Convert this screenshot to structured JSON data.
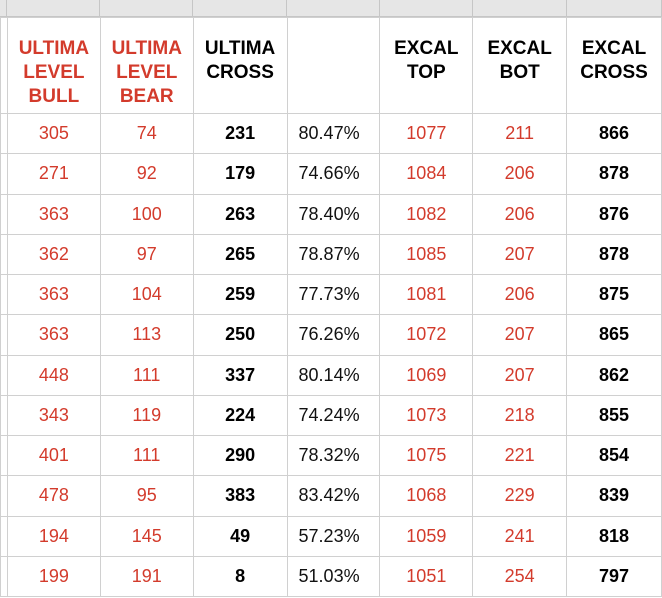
{
  "colors": {
    "red_text": "#d33b2c",
    "black_text": "#000000",
    "grid_line": "#d0d0d0",
    "header_strip": "#e6e6e6"
  },
  "headers": [
    "ULTIMA LEVEL BULL",
    "ULTIMA LEVEL BEAR",
    "ULTIMA CROSS",
    "",
    "EXCAL TOP",
    "EXCAL BOT",
    "EXCAL CROSS"
  ],
  "rows": [
    [
      "305",
      "74",
      "231",
      "80.47%",
      "1077",
      "211",
      "866"
    ],
    [
      "271",
      "92",
      "179",
      "74.66%",
      "1084",
      "206",
      "878"
    ],
    [
      "363",
      "100",
      "263",
      "78.40%",
      "1082",
      "206",
      "876"
    ],
    [
      "362",
      "97",
      "265",
      "78.87%",
      "1085",
      "207",
      "878"
    ],
    [
      "363",
      "104",
      "259",
      "77.73%",
      "1081",
      "206",
      "875"
    ],
    [
      "363",
      "113",
      "250",
      "76.26%",
      "1072",
      "207",
      "865"
    ],
    [
      "448",
      "111",
      "337",
      "80.14%",
      "1069",
      "207",
      "862"
    ],
    [
      "343",
      "119",
      "224",
      "74.24%",
      "1073",
      "218",
      "855"
    ],
    [
      "401",
      "111",
      "290",
      "78.32%",
      "1075",
      "221",
      "854"
    ],
    [
      "478",
      "95",
      "383",
      "83.42%",
      "1068",
      "229",
      "839"
    ],
    [
      "194",
      "145",
      "49",
      "57.23%",
      "1059",
      "241",
      "818"
    ],
    [
      "199",
      "191",
      "8",
      "51.03%",
      "1051",
      "254",
      "797"
    ]
  ]
}
